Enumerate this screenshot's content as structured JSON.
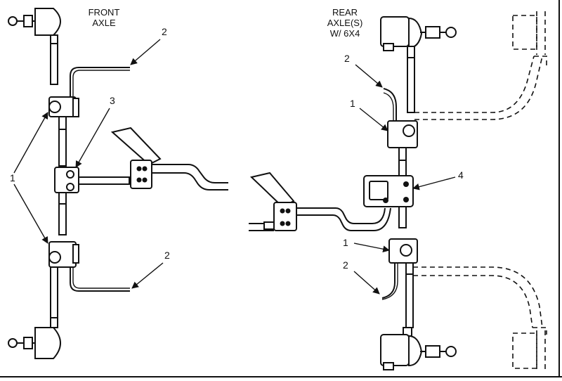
{
  "labels": {
    "front_axle_line1": "FRONT",
    "front_axle_line2": "AXLE",
    "rear_axle_line1": "REAR",
    "rear_axle_line2": "AXLE(S)",
    "rear_axle_line3": "W/ 6X4"
  },
  "callouts": {
    "front_top_2": "2",
    "front_1": "1",
    "front_3": "3",
    "front_bottom_2": "2",
    "rear_top_2": "2",
    "rear_top_1": "1",
    "rear_4": "4",
    "rear_bottom_1": "1",
    "rear_bottom_2": "2"
  }
}
